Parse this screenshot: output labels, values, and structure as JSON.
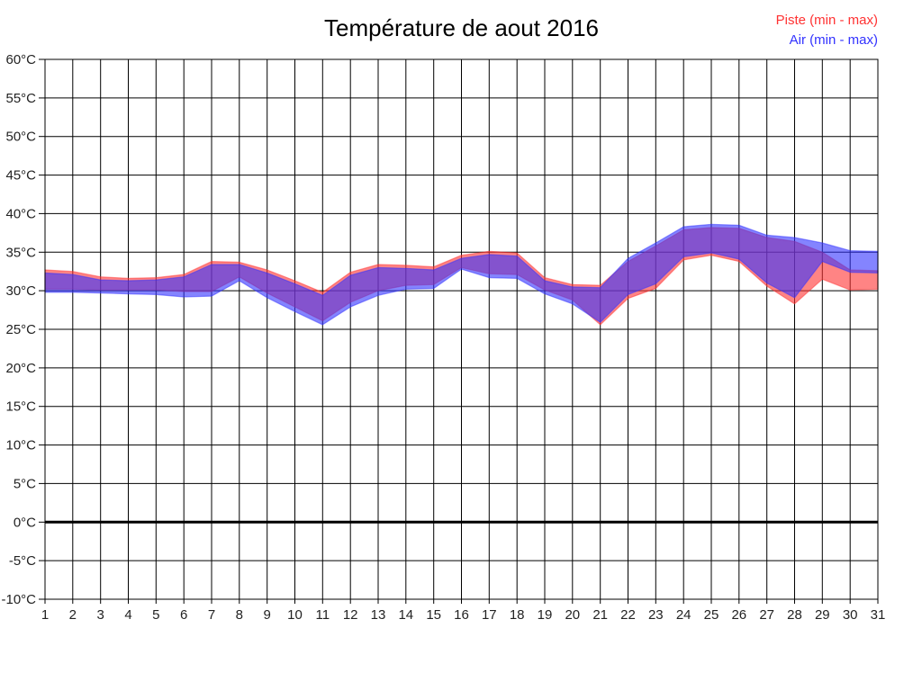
{
  "chart_data": {
    "type": "area",
    "title": "Température de aout 2016",
    "xlabel": "",
    "ylabel": "",
    "ylim": [
      -10,
      60
    ],
    "ytick_step": 5,
    "ytick_suffix": "°C",
    "grid": true,
    "zero_line_bold": true,
    "legend_position": "top-right",
    "axis_color": "#000000",
    "tick_label_color": "#222222",
    "days": [
      1,
      2,
      3,
      4,
      5,
      6,
      7,
      8,
      9,
      10,
      11,
      12,
      13,
      14,
      15,
      16,
      17,
      18,
      19,
      20,
      21,
      22,
      23,
      24,
      25,
      26,
      27,
      28,
      29,
      30,
      31
    ],
    "series": [
      {
        "id": "piste",
        "name": "Piste (min - max)",
        "color": "#ff3232",
        "min": [
          30.2,
          30.2,
          30.1,
          30.1,
          30.1,
          29.9,
          29.9,
          31.8,
          29.7,
          27.9,
          26.1,
          28.5,
          30.0,
          30.7,
          30.8,
          33.0,
          32.2,
          32.1,
          30.1,
          28.8,
          25.6,
          29.0,
          30.3,
          34.0,
          34.6,
          33.8,
          30.6,
          28.3,
          31.5,
          30.1,
          30.2
        ],
        "max": [
          32.7,
          32.5,
          31.8,
          31.6,
          31.7,
          32.1,
          33.8,
          33.7,
          32.7,
          31.3,
          29.8,
          32.4,
          33.4,
          33.3,
          33.1,
          34.6,
          35.1,
          34.9,
          31.7,
          30.8,
          30.7,
          33.8,
          35.8,
          37.9,
          38.2,
          38.1,
          36.9,
          36.4,
          35.0,
          32.7,
          32.6
        ]
      },
      {
        "id": "air",
        "name": "Air (min - max)",
        "color": "#3232ff",
        "min": [
          29.8,
          29.8,
          29.7,
          29.6,
          29.5,
          29.2,
          29.3,
          31.3,
          29.1,
          27.3,
          25.6,
          27.9,
          29.4,
          30.2,
          30.3,
          32.8,
          31.7,
          31.6,
          29.6,
          28.3,
          25.9,
          29.5,
          30.9,
          34.4,
          34.9,
          34.1,
          31.0,
          29.1,
          33.8,
          32.4,
          32.3
        ],
        "max": [
          32.3,
          32.1,
          31.4,
          31.3,
          31.4,
          31.8,
          33.4,
          33.4,
          32.3,
          30.9,
          29.4,
          32.0,
          33.0,
          32.9,
          32.7,
          34.2,
          34.7,
          34.5,
          31.3,
          30.5,
          30.4,
          34.2,
          36.2,
          38.3,
          38.6,
          38.5,
          37.2,
          36.9,
          36.2,
          35.2,
          35.1
        ]
      }
    ]
  }
}
